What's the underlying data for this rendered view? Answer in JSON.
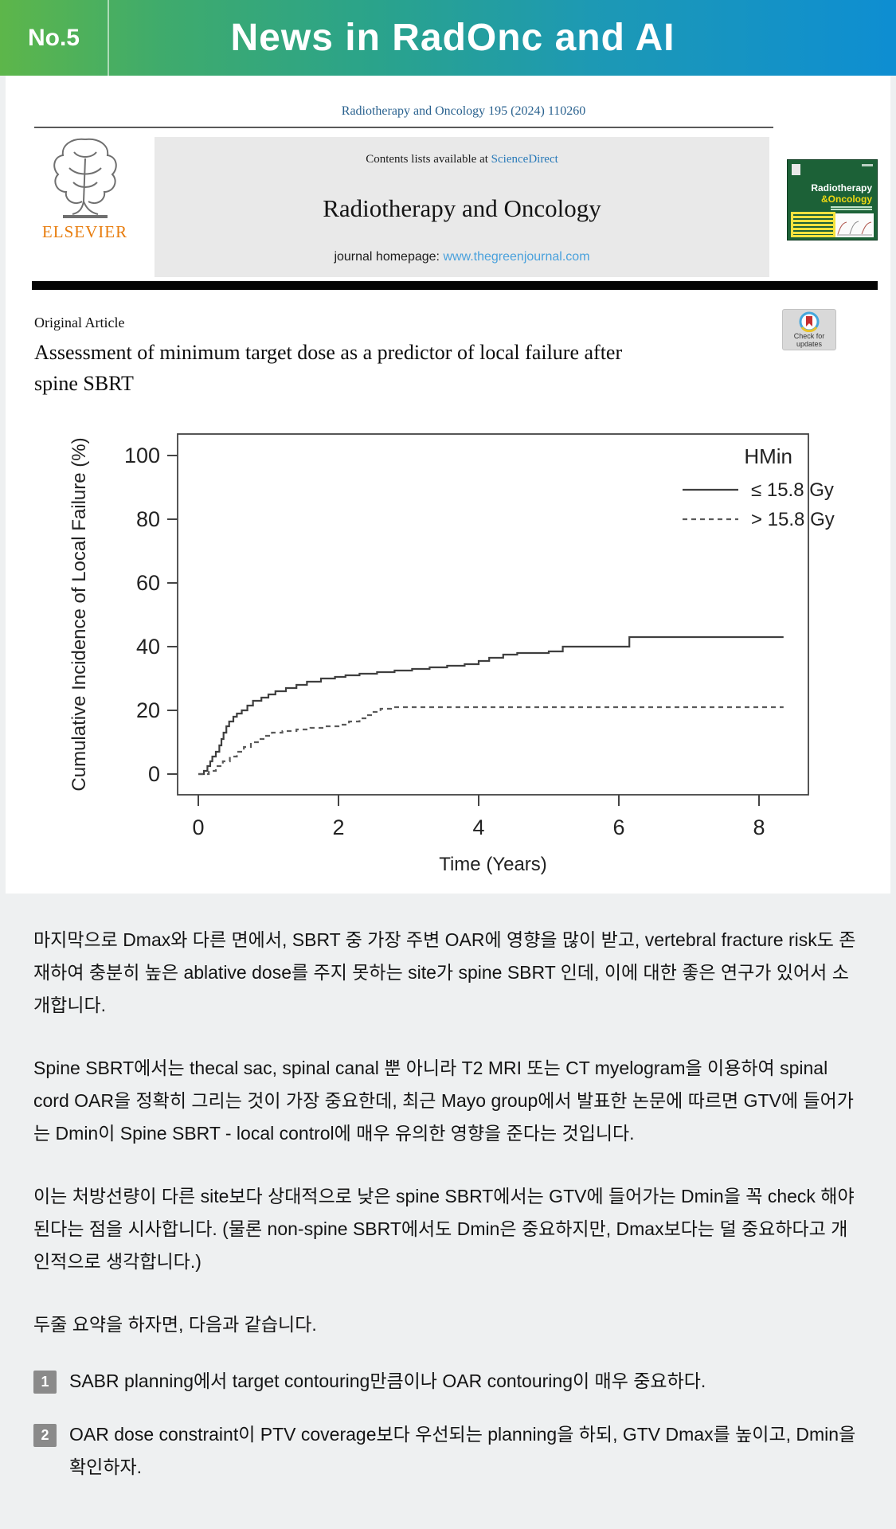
{
  "header": {
    "badge": "No.5",
    "title": "News in RadOnc and AI"
  },
  "paper": {
    "citation": "Radiotherapy and Oncology 195 (2024) 110260",
    "publisher": "ELSEVIER",
    "banner": {
      "contents_prefix": "Contents lists available at ",
      "contents_link": "ScienceDirect",
      "journal_title": "Radiotherapy and Oncology",
      "homepage_prefix": "journal homepage: ",
      "homepage_url": "www.thegreenjournal.com"
    },
    "cover": {
      "line1": "Radiotherapy",
      "line2": "&Oncology"
    },
    "article_type": "Original Article",
    "check_updates_line1": "Check for",
    "check_updates_line2": "updates",
    "title_line1": "Assessment of minimum target dose as a predictor of local failure after",
    "title_line2": "spine SBRT"
  },
  "chart_data": {
    "type": "line",
    "subtype": "cumulative-incidence-step",
    "title": "",
    "xlabel": "Time (Years)",
    "ylabel": "Cumulative Incidence of Local Failure (%)",
    "xlim": [
      0,
      8.7
    ],
    "ylim": [
      0,
      100
    ],
    "x_ticks": [
      0,
      2,
      4,
      6,
      8
    ],
    "y_ticks": [
      0,
      20,
      40,
      60,
      80,
      100
    ],
    "grid": "off",
    "legend_title": "HMin",
    "legend_position": "top-right",
    "line_color": "#3f3f3f",
    "series": [
      {
        "name": "≤ 15.8 Gy",
        "style": "solid",
        "step_points": [
          [
            0,
            0
          ],
          [
            0.08,
            1
          ],
          [
            0.13,
            2.5
          ],
          [
            0.17,
            4
          ],
          [
            0.2,
            5.5
          ],
          [
            0.25,
            7
          ],
          [
            0.3,
            9
          ],
          [
            0.33,
            11
          ],
          [
            0.36,
            13
          ],
          [
            0.4,
            15
          ],
          [
            0.44,
            16.5
          ],
          [
            0.5,
            18
          ],
          [
            0.55,
            19
          ],
          [
            0.62,
            20
          ],
          [
            0.7,
            21.5
          ],
          [
            0.78,
            23
          ],
          [
            0.9,
            24
          ],
          [
            1.0,
            25
          ],
          [
            1.1,
            26
          ],
          [
            1.25,
            27
          ],
          [
            1.4,
            28
          ],
          [
            1.55,
            29
          ],
          [
            1.75,
            30
          ],
          [
            1.95,
            30.5
          ],
          [
            2.1,
            31
          ],
          [
            2.3,
            31.5
          ],
          [
            2.55,
            32
          ],
          [
            2.8,
            32.5
          ],
          [
            3.05,
            33
          ],
          [
            3.3,
            33.5
          ],
          [
            3.55,
            34
          ],
          [
            3.8,
            34.5
          ],
          [
            4.0,
            35.5
          ],
          [
            4.15,
            36.5
          ],
          [
            4.35,
            37.5
          ],
          [
            4.55,
            38
          ],
          [
            5.0,
            38.5
          ],
          [
            5.2,
            40
          ],
          [
            6.15,
            43
          ],
          [
            8.35,
            43
          ]
        ]
      },
      {
        "name": "> 15.8 Gy",
        "style": "dashed",
        "step_points": [
          [
            0,
            0
          ],
          [
            0.15,
            1
          ],
          [
            0.25,
            2.5
          ],
          [
            0.35,
            4
          ],
          [
            0.45,
            5.5
          ],
          [
            0.55,
            7
          ],
          [
            0.65,
            8.5
          ],
          [
            0.75,
            10
          ],
          [
            0.85,
            11
          ],
          [
            0.95,
            12
          ],
          [
            1.05,
            13
          ],
          [
            1.2,
            13.5
          ],
          [
            1.4,
            14
          ],
          [
            1.6,
            14.5
          ],
          [
            1.8,
            15
          ],
          [
            2.0,
            15.5
          ],
          [
            2.15,
            16.5
          ],
          [
            2.3,
            17.5
          ],
          [
            2.4,
            18.5
          ],
          [
            2.5,
            19.5
          ],
          [
            2.6,
            20.5
          ],
          [
            2.75,
            21
          ],
          [
            8.35,
            21
          ]
        ]
      }
    ]
  },
  "commentary": {
    "p1": "마지막으로 Dmax와 다른 면에서, SBRT 중 가장 주변 OAR에 영향을 많이 받고, vertebral fracture risk도 존재하여 충분히 높은 ablative dose를 주지 못하는 site가 spine SBRT 인데, 이에 대한 좋은 연구가 있어서 소개합니다.",
    "p2": "Spine SBRT에서는 thecal sac, spinal canal 뿐 아니라 T2 MRI 또는 CT myelogram을 이용하여 spinal cord OAR을 정확히 그리는 것이 가장 중요한데, 최근 Mayo group에서 발표한 논문에 따르면 GTV에 들어가는 Dmin이 Spine SBRT - local control에 매우 유의한 영향을 준다는 것입니다.",
    "p3": "이는 처방선량이 다른 site보다 상대적으로 낮은 spine SBRT에서는 GTV에 들어가는 Dmin을 꼭 check 해야 된다는 점을 시사합니다. (물론 non-spine SBRT에서도 Dmin은 중요하지만, Dmax보다는 덜 중요하다고 개인적으로 생각합니다.)",
    "summary_intro": "두줄 요약을 하자면, 다음과 같습니다.",
    "items": [
      {
        "num": "1",
        "text": "SABR planning에서 target contouring만큼이나 OAR contouring이 매우 중요하다."
      },
      {
        "num": "2",
        "text": "OAR dose constraint이 PTV coverage보다 우선되는 planning을 하되, GTV Dmax를 높이고, Dmin을 확인하자."
      }
    ]
  }
}
